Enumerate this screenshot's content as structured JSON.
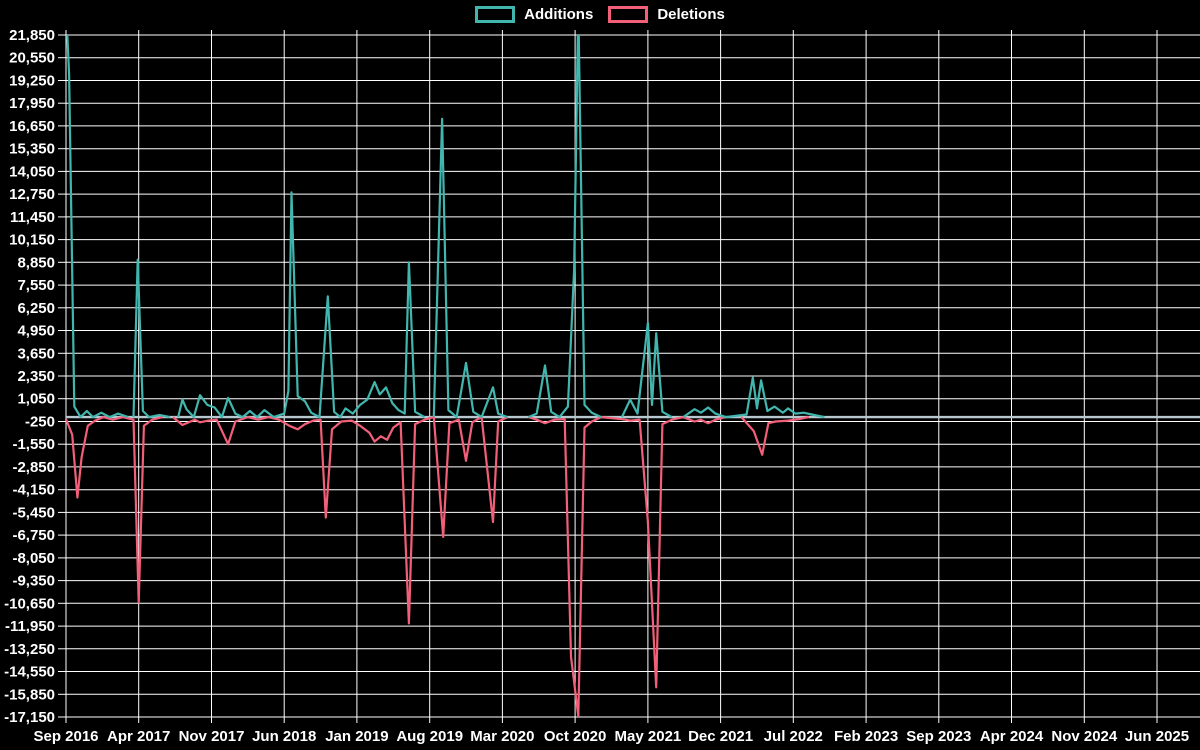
{
  "page": {
    "background": "#000000"
  },
  "chart_data": {
    "type": "line",
    "title": "",
    "grid": true,
    "legend_position": "top",
    "legend": [
      {
        "label": "Additions",
        "color": "#41B6AE"
      },
      {
        "label": "Deletions",
        "color": "#F25F78"
      }
    ],
    "x_axis": {
      "tick_labels": [
        "Sep 2016",
        "Apr 2017",
        "Nov 2017",
        "Jun 2018",
        "Jan 2019",
        "Aug 2019",
        "Mar 2020",
        "Oct 2020",
        "May 2021",
        "Dec 2021",
        "Jul 2022",
        "Feb 2023",
        "Sep 2023",
        "Apr 2024",
        "Nov 2024",
        "Jun 2025"
      ],
      "months_per_tick": 7
    },
    "y_axis": {
      "max": 21850,
      "min": -17150,
      "step": 1300,
      "tick_labels": [
        "21,850",
        "20,550",
        "19,250",
        "17,950",
        "16,650",
        "15,350",
        "14,050",
        "12,750",
        "11,450",
        "10,150",
        "8,850",
        "7,550",
        "6,250",
        "4,950",
        "3,650",
        "2,350",
        "1,050",
        "-250",
        "-1,550",
        "-2,850",
        "-4,150",
        "-5,450",
        "-6,750",
        "-8,050",
        "-9,350",
        "-10,650",
        "-11,950",
        "-13,250",
        "-14,550",
        "-15,850",
        "-17,150"
      ]
    },
    "baseline_color": "#B7C9CF",
    "grid_color": "#FFFFFF",
    "axis_text_color": "#FFFFFF",
    "series": [
      {
        "name": "Additions",
        "color": "#41B6AE",
        "points": [
          [
            0,
            23500
          ],
          [
            0.3,
            19600
          ],
          [
            0.8,
            600
          ],
          [
            1.4,
            0
          ],
          [
            2,
            350
          ],
          [
            2.6,
            0
          ],
          [
            3.4,
            250
          ],
          [
            4.2,
            0
          ],
          [
            5,
            200
          ],
          [
            6,
            0
          ],
          [
            6.5,
            0
          ],
          [
            6.9,
            9000
          ],
          [
            7.4,
            350
          ],
          [
            8,
            0
          ],
          [
            9,
            120
          ],
          [
            10,
            0
          ],
          [
            10.8,
            0
          ],
          [
            11.2,
            1000
          ],
          [
            11.6,
            450
          ],
          [
            12.3,
            0
          ],
          [
            12.9,
            1250
          ],
          [
            13.6,
            700
          ],
          [
            14.3,
            550
          ],
          [
            15,
            0
          ],
          [
            15.6,
            1100
          ],
          [
            16.3,
            200
          ],
          [
            17,
            0
          ],
          [
            17.7,
            350
          ],
          [
            18.4,
            0
          ],
          [
            19.1,
            400
          ],
          [
            20,
            0
          ],
          [
            21,
            200
          ],
          [
            21.4,
            1500
          ],
          [
            21.7,
            12850
          ],
          [
            22.3,
            1200
          ],
          [
            23,
            900
          ],
          [
            23.6,
            250
          ],
          [
            24.4,
            0
          ],
          [
            25.2,
            6900
          ],
          [
            25.8,
            300
          ],
          [
            26.4,
            0
          ],
          [
            26.9,
            500
          ],
          [
            27.6,
            200
          ],
          [
            28.3,
            700
          ],
          [
            29,
            1000
          ],
          [
            29.7,
            2000
          ],
          [
            30.2,
            1300
          ],
          [
            30.8,
            1700
          ],
          [
            31.4,
            800
          ],
          [
            32,
            400
          ],
          [
            32.6,
            200
          ],
          [
            33,
            8850
          ],
          [
            33.6,
            300
          ],
          [
            34.5,
            0
          ],
          [
            35.4,
            0
          ],
          [
            36.2,
            17050
          ],
          [
            36.8,
            400
          ],
          [
            37.6,
            0
          ],
          [
            38.5,
            3100
          ],
          [
            39.2,
            300
          ],
          [
            40,
            0
          ],
          [
            41.1,
            1700
          ],
          [
            41.6,
            200
          ],
          [
            42.5,
            0
          ],
          [
            44.5,
            0
          ],
          [
            45.3,
            200
          ],
          [
            46.1,
            2950
          ],
          [
            46.7,
            300
          ],
          [
            47.5,
            0
          ],
          [
            48.3,
            600
          ],
          [
            48.9,
            8400
          ],
          [
            49.3,
            23500
          ],
          [
            49.9,
            700
          ],
          [
            50.6,
            250
          ],
          [
            51.5,
            0
          ],
          [
            53.5,
            0
          ],
          [
            54.3,
            1000
          ],
          [
            55,
            200
          ],
          [
            56,
            5400
          ],
          [
            56.4,
            700
          ],
          [
            56.8,
            4800
          ],
          [
            57.4,
            300
          ],
          [
            58.3,
            0
          ],
          [
            59.4,
            0
          ],
          [
            60.5,
            450
          ],
          [
            61.1,
            250
          ],
          [
            61.8,
            550
          ],
          [
            62.5,
            200
          ],
          [
            63.5,
            0
          ],
          [
            65.5,
            150
          ],
          [
            66.1,
            2250
          ],
          [
            66.5,
            500
          ],
          [
            66.9,
            2100
          ],
          [
            67.5,
            350
          ],
          [
            68.2,
            600
          ],
          [
            69,
            250
          ],
          [
            69.5,
            500
          ],
          [
            70.2,
            200
          ],
          [
            71,
            250
          ],
          [
            72,
            120
          ],
          [
            73,
            0
          ],
          [
            109,
            0
          ]
        ]
      },
      {
        "name": "Deletions",
        "color": "#F25F78",
        "points": [
          [
            0,
            -120
          ],
          [
            0.6,
            -1000
          ],
          [
            1.1,
            -4600
          ],
          [
            1.5,
            -2300
          ],
          [
            2.1,
            -500
          ],
          [
            2.8,
            -200
          ],
          [
            3.6,
            0
          ],
          [
            4.5,
            -150
          ],
          [
            5.5,
            0
          ],
          [
            6.5,
            -150
          ],
          [
            7,
            -10600
          ],
          [
            7.5,
            -500
          ],
          [
            8.3,
            -150
          ],
          [
            9.3,
            0
          ],
          [
            10.3,
            0
          ],
          [
            11.2,
            -450
          ],
          [
            11.6,
            -350
          ],
          [
            12.4,
            -150
          ],
          [
            12.9,
            -300
          ],
          [
            13.7,
            -200
          ],
          [
            14.5,
            -150
          ],
          [
            15.6,
            -1550
          ],
          [
            16.3,
            -250
          ],
          [
            17.5,
            0
          ],
          [
            18.5,
            -150
          ],
          [
            19.5,
            0
          ],
          [
            20.5,
            -150
          ],
          [
            21.5,
            -500
          ],
          [
            22.3,
            -700
          ],
          [
            23,
            -400
          ],
          [
            23.8,
            -200
          ],
          [
            24.5,
            -150
          ],
          [
            25,
            -5750
          ],
          [
            25.6,
            -700
          ],
          [
            26.5,
            -250
          ],
          [
            27.5,
            -200
          ],
          [
            28.3,
            -500
          ],
          [
            29.2,
            -900
          ],
          [
            29.7,
            -1400
          ],
          [
            30.3,
            -1100
          ],
          [
            30.9,
            -1300
          ],
          [
            31.5,
            -600
          ],
          [
            32.2,
            -300
          ],
          [
            33,
            -11800
          ],
          [
            33.6,
            -400
          ],
          [
            34.5,
            -150
          ],
          [
            35.4,
            0
          ],
          [
            36.3,
            -6850
          ],
          [
            36.9,
            -350
          ],
          [
            37.8,
            -150
          ],
          [
            38.5,
            -2500
          ],
          [
            39.1,
            -300
          ],
          [
            40,
            0
          ],
          [
            41.1,
            -6000
          ],
          [
            41.6,
            -250
          ],
          [
            42.5,
            0
          ],
          [
            44.5,
            0
          ],
          [
            45.3,
            -150
          ],
          [
            46.1,
            -350
          ],
          [
            47,
            -150
          ],
          [
            48,
            -120
          ],
          [
            48.6,
            -13700
          ],
          [
            49.3,
            -17100
          ],
          [
            49.9,
            -600
          ],
          [
            50.6,
            -250
          ],
          [
            51.5,
            0
          ],
          [
            53.5,
            -120
          ],
          [
            54.3,
            -200
          ],
          [
            55.2,
            -150
          ],
          [
            56,
            -6000
          ],
          [
            56.8,
            -15450
          ],
          [
            57.4,
            -400
          ],
          [
            58.3,
            -150
          ],
          [
            59.4,
            0
          ],
          [
            60.5,
            -250
          ],
          [
            61.1,
            -150
          ],
          [
            61.8,
            -350
          ],
          [
            62.5,
            -150
          ],
          [
            63.5,
            0
          ],
          [
            65,
            0
          ],
          [
            66.2,
            -800
          ],
          [
            67,
            -2150
          ],
          [
            67.6,
            -350
          ],
          [
            68.3,
            -250
          ],
          [
            69.5,
            -200
          ],
          [
            70.5,
            -120
          ],
          [
            71.5,
            0
          ],
          [
            73,
            0
          ],
          [
            109,
            0
          ]
        ]
      }
    ]
  }
}
